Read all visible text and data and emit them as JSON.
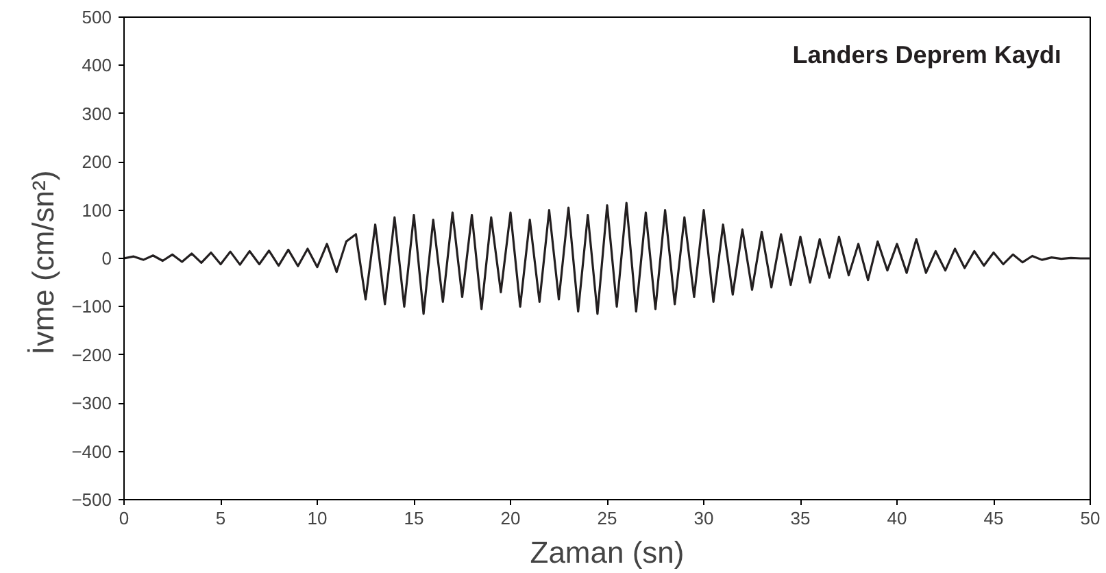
{
  "chart_data": {
    "type": "line",
    "title": "Landers Deprem Kaydı",
    "xlabel": "Zaman (sn)",
    "ylabel": "İvme  (cm/sn²)",
    "x": [
      0,
      0.5,
      1,
      1.5,
      2,
      2.5,
      3,
      3.5,
      4,
      4.5,
      5,
      5.5,
      6,
      6.5,
      7,
      7.5,
      8,
      8.5,
      9,
      9.5,
      10,
      10.5,
      11,
      11.5,
      12,
      12.5,
      13,
      13.5,
      14,
      14.5,
      15,
      15.5,
      16,
      16.5,
      17,
      17.5,
      18,
      18.5,
      19,
      19.5,
      20,
      20.5,
      21,
      21.5,
      22,
      22.5,
      23,
      23.5,
      24,
      24.5,
      25,
      25.5,
      26,
      26.5,
      27,
      27.5,
      28,
      28.5,
      29,
      29.5,
      30,
      30.5,
      31,
      31.5,
      32,
      32.5,
      33,
      33.5,
      34,
      34.5,
      35,
      35.5,
      36,
      36.5,
      37,
      37.5,
      38,
      38.5,
      39,
      39.5,
      40,
      40.5,
      41,
      41.5,
      42,
      42.5,
      43,
      43.5,
      44,
      44.5,
      45,
      45.5,
      46,
      46.5,
      47,
      47.5,
      48,
      48.5,
      49,
      49.5,
      50
    ],
    "series": [
      {
        "color": "#231f20",
        "values": [
          0,
          4,
          -3,
          6,
          -5,
          8,
          -7,
          10,
          -9,
          12,
          -12,
          14,
          -13,
          15,
          -12,
          16,
          -15,
          18,
          -16,
          20,
          -18,
          30,
          -28,
          35,
          50,
          -85,
          70,
          -95,
          85,
          -100,
          90,
          -115,
          80,
          -90,
          95,
          -80,
          90,
          -105,
          85,
          -70,
          95,
          -100,
          80,
          -90,
          100,
          -85,
          105,
          -110,
          90,
          -115,
          110,
          -100,
          115,
          -110,
          95,
          -105,
          100,
          -95,
          85,
          -80,
          100,
          -90,
          70,
          -75,
          60,
          -65,
          55,
          -60,
          50,
          -55,
          45,
          -50,
          40,
          -40,
          45,
          -35,
          30,
          -45,
          35,
          -25,
          30,
          -30,
          40,
          -30,
          15,
          -25,
          20,
          -20,
          15,
          -15,
          12,
          -12,
          8,
          -8,
          5,
          -3,
          2,
          -1,
          1,
          0,
          0
        ]
      }
    ],
    "xlim": [
      0,
      50
    ],
    "ylim": [
      -500,
      500
    ],
    "xticks": [
      0,
      5,
      10,
      15,
      20,
      25,
      30,
      35,
      40,
      45,
      50
    ],
    "yticks": [
      -500,
      -400,
      -300,
      -200,
      -100,
      0,
      100,
      200,
      300,
      400,
      500
    ],
    "marker": "none",
    "line_style": "solid"
  }
}
